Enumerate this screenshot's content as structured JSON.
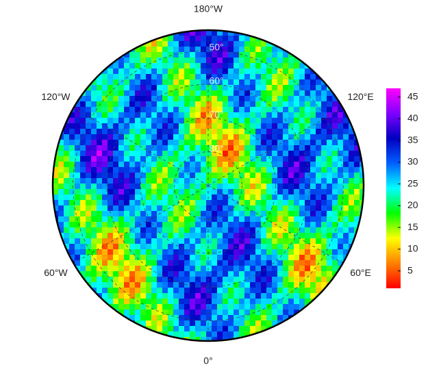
{
  "map": {
    "projection": "north-polar-stereographic",
    "lat_range": [
      44,
      90
    ],
    "latitudes": [
      {
        "value": 50,
        "label": "50°"
      },
      {
        "value": 60,
        "label": "60°"
      },
      {
        "value": 70,
        "label": "70°"
      },
      {
        "value": 80,
        "label": "80°"
      }
    ],
    "longitudes": [
      {
        "value": -180,
        "label": "180°W"
      },
      {
        "value": 120,
        "label": "120°E"
      },
      {
        "value": 60,
        "label": "60°E"
      },
      {
        "value": 0,
        "label": "0°"
      },
      {
        "value": -60,
        "label": "60°W"
      },
      {
        "value": -120,
        "label": "120°W"
      }
    ],
    "colorbar": {
      "lim": [
        1,
        47
      ],
      "ticks": [
        5,
        10,
        15,
        20,
        25,
        30,
        35,
        40,
        45
      ],
      "colormap": [
        "#ff0000",
        "#ff8000",
        "#ffff00",
        "#00ff00",
        "#00ffff",
        "#0060ff",
        "#0000c0",
        "#8000ff",
        "#ff00ff"
      ]
    }
  }
}
